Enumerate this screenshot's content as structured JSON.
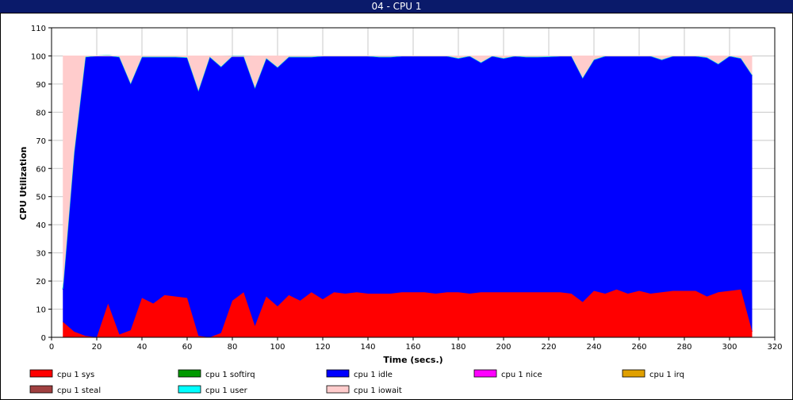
{
  "window": {
    "title": "04 - CPU 1"
  },
  "chart_data": {
    "type": "area",
    "stacked": true,
    "xlabel": "Time (secs.)",
    "ylabel": "CPU Utilization",
    "xlim": [
      0,
      320
    ],
    "ylim": [
      0,
      110
    ],
    "xticks": [
      0,
      20,
      40,
      60,
      80,
      100,
      120,
      140,
      160,
      180,
      200,
      220,
      240,
      260,
      280,
      300,
      320
    ],
    "yticks": [
      0,
      10,
      20,
      30,
      40,
      50,
      60,
      70,
      80,
      90,
      100,
      110
    ],
    "grid": true,
    "legend_position": "bottom",
    "x": [
      5,
      10,
      15,
      20,
      25,
      30,
      35,
      40,
      45,
      50,
      55,
      60,
      65,
      70,
      75,
      80,
      85,
      90,
      95,
      100,
      105,
      110,
      115,
      120,
      125,
      130,
      135,
      140,
      145,
      150,
      155,
      160,
      165,
      170,
      175,
      180,
      185,
      190,
      195,
      200,
      205,
      210,
      215,
      220,
      225,
      230,
      235,
      240,
      245,
      250,
      255,
      260,
      265,
      270,
      275,
      280,
      285,
      290,
      295,
      300,
      305,
      310
    ],
    "series": [
      {
        "name": "cpu 1 sys",
        "color": "#ff0000",
        "values": [
          5.5,
          2,
          0.5,
          0,
          12,
          1,
          2.5,
          14,
          12,
          15,
          14.5,
          14,
          0.5,
          0,
          1.5,
          13,
          16,
          4,
          14.5,
          11,
          15,
          13,
          16,
          13.5,
          16,
          15.5,
          16,
          15.5,
          15.5,
          15.5,
          16,
          16,
          16,
          15.5,
          16,
          16,
          15.5,
          16,
          16,
          16,
          16,
          16,
          16,
          16,
          16,
          15.5,
          12.5,
          16.5,
          15.5,
          17,
          15.5,
          16.5,
          15.5,
          16,
          16.5,
          16.5,
          16.5,
          14.5,
          16,
          16.5,
          17,
          2
        ]
      },
      {
        "name": "cpu 1 softirq",
        "color": "#009900",
        "values": [
          0,
          0,
          0,
          0,
          0,
          0,
          0,
          0,
          0,
          0,
          0,
          0,
          0,
          0,
          0,
          0,
          0,
          0,
          0,
          0,
          0,
          0,
          0,
          0,
          0,
          0,
          0,
          0,
          0,
          0,
          0,
          0,
          0,
          0,
          0,
          0,
          0,
          0,
          0,
          0,
          0,
          0,
          0,
          0,
          0,
          0,
          0,
          0,
          0,
          0,
          0,
          0,
          0,
          0,
          0,
          0,
          0,
          0,
          0,
          0,
          0,
          0
        ]
      },
      {
        "name": "cpu 1 idle",
        "color": "#0000ff",
        "values": [
          11.5,
          63.5,
          99,
          100,
          88,
          98.5,
          87.5,
          85.5,
          87.5,
          84.5,
          85,
          85.3,
          87,
          99.5,
          94.5,
          86.8,
          83.8,
          84.5,
          84.5,
          84.8,
          84.5,
          86.5,
          83.5,
          86.3,
          83.8,
          84.3,
          83.8,
          84.3,
          84,
          84,
          83.8,
          83.8,
          83.8,
          84.3,
          83.8,
          83,
          84.3,
          81.5,
          83.8,
          83,
          83.8,
          83.5,
          83.5,
          83.6,
          83.8,
          84.3,
          79.5,
          82,
          84.3,
          82.8,
          84.3,
          83.3,
          84.3,
          82.5,
          83.3,
          83.3,
          83.3,
          84.8,
          81,
          83.3,
          82,
          91
        ]
      },
      {
        "name": "cpu 1 nice",
        "color": "#ff00ff",
        "values": [
          0,
          0,
          0,
          0,
          0,
          0,
          0,
          0,
          0,
          0,
          0,
          0,
          0,
          0,
          0,
          0,
          0,
          0,
          0,
          0,
          0,
          0,
          0,
          0,
          0,
          0,
          0,
          0,
          0,
          0,
          0,
          0,
          0,
          0,
          0,
          0,
          0,
          0,
          0,
          0,
          0,
          0,
          0,
          0,
          0,
          0,
          0,
          0,
          0,
          0,
          0,
          0,
          0,
          0,
          0,
          0,
          0,
          0,
          0,
          0,
          0,
          0
        ]
      },
      {
        "name": "cpu 1 irq",
        "color": "#e0a000",
        "values": [
          0,
          0,
          0,
          0,
          0,
          0,
          0,
          0,
          0,
          0,
          0,
          0,
          0,
          0,
          0,
          0,
          0,
          0,
          0,
          0,
          0,
          0,
          0,
          0,
          0,
          0,
          0,
          0,
          0,
          0,
          0,
          0,
          0,
          0,
          0,
          0,
          0,
          0,
          0,
          0,
          0,
          0,
          0,
          0,
          0,
          0,
          0,
          0,
          0,
          0,
          0,
          0,
          0,
          0,
          0,
          0,
          0,
          0,
          0,
          0,
          0,
          0
        ]
      },
      {
        "name": "cpu 1 steal",
        "color": "#a04040",
        "values": [
          0,
          0,
          0,
          0,
          0,
          0,
          0,
          0,
          0,
          0,
          0,
          0,
          0,
          0,
          0,
          0,
          0,
          0,
          0,
          0,
          0,
          0,
          0,
          0,
          0,
          0,
          0,
          0,
          0,
          0,
          0,
          0,
          0,
          0,
          0,
          0,
          0,
          0,
          0,
          0,
          0,
          0,
          0,
          0,
          0,
          0,
          0,
          0,
          0,
          0,
          0,
          0,
          0,
          0,
          0,
          0,
          0,
          0,
          0,
          0,
          0,
          0
        ]
      },
      {
        "name": "cpu 1 user",
        "color": "#00ffff",
        "values": [
          0.2,
          0.2,
          0.2,
          0,
          0.2,
          0.2,
          0.2,
          0.2,
          0.2,
          0.2,
          0.2,
          0.2,
          0.2,
          0.2,
          0.2,
          0.2,
          0.2,
          0.2,
          0.2,
          0.2,
          0.2,
          0.2,
          0.2,
          0.2,
          0.2,
          0.2,
          0.2,
          0.2,
          0.2,
          0.2,
          0.2,
          0.2,
          0.2,
          0.2,
          0.2,
          0.2,
          0.2,
          0.2,
          0.2,
          0.2,
          0.2,
          0.2,
          0.2,
          0.2,
          0.2,
          0.2,
          0.2,
          0.2,
          0.2,
          0.2,
          0.2,
          0.2,
          0.2,
          0.2,
          0.2,
          0.2,
          0.2,
          0.2,
          0.2,
          0.2,
          0.2,
          0.2
        ]
      },
      {
        "name": "cpu 1 iowait",
        "color": "#ffcccc",
        "values": [
          82.8,
          34.3,
          0.3,
          0,
          -0.2,
          0.3,
          9.8,
          0.3,
          0.3,
          0.3,
          0.3,
          0.5,
          12.3,
          0.3,
          3.8,
          -0.2,
          -0.2,
          11.3,
          0.8,
          4,
          0.3,
          0.3,
          0.3,
          0,
          0,
          0,
          0,
          0,
          0.3,
          0.3,
          0,
          0,
          0,
          0,
          0,
          0.8,
          0,
          2.3,
          0,
          0.8,
          0,
          0.3,
          0.3,
          0.2,
          0,
          0,
          7.8,
          1.3,
          0,
          0,
          0,
          0,
          0,
          1.3,
          0,
          0,
          0,
          0.5,
          2.8,
          0,
          0.8,
          6.8
        ]
      }
    ]
  }
}
